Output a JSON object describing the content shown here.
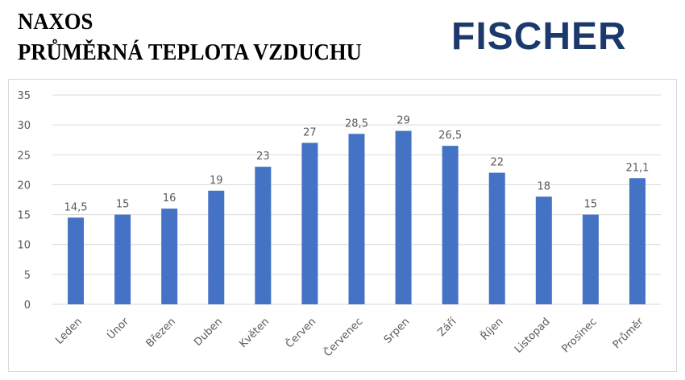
{
  "header": {
    "title_line1": "NAXOS",
    "title_line2": "PRŮMĚRNÁ TEPLOTA VZDUCHU",
    "logo": "FISCHER"
  },
  "colors": {
    "bar": "#4472c4",
    "logo": "#1b3a6b",
    "grid": "#d9d9d9"
  },
  "chart_data": {
    "type": "bar",
    "categories": [
      "Leden",
      "Únor",
      "Březen",
      "Duben",
      "Květen",
      "Červen",
      "Červenec",
      "Srpen",
      "Září",
      "Říjen",
      "Listopad",
      "Prosinec",
      "Průměr"
    ],
    "values": [
      14.5,
      15,
      16,
      19,
      23,
      27,
      28.5,
      29,
      26.5,
      22,
      18,
      15,
      21.1
    ],
    "data_labels": [
      "14,5",
      "15",
      "16",
      "19",
      "23",
      "27",
      "28,5",
      "29",
      "26,5",
      "22",
      "18",
      "15",
      "21,1"
    ],
    "ylim": [
      0,
      35
    ],
    "yticks": [
      "0",
      "5",
      "10",
      "15",
      "20",
      "25",
      "30",
      "35"
    ],
    "grid": true,
    "legend": "none",
    "title": "",
    "xlabel": "",
    "ylabel": ""
  }
}
